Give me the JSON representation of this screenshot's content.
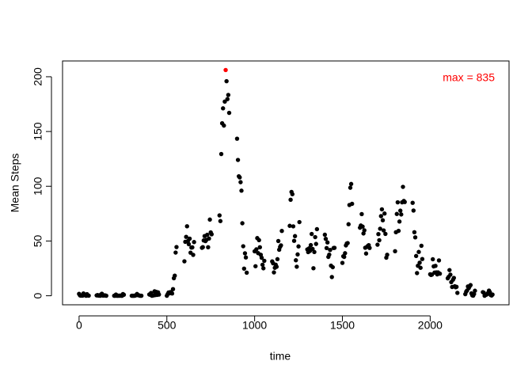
{
  "chart_data": {
    "type": "scatter",
    "x_label": "time",
    "y_label": "Mean Steps",
    "annotation": {
      "text": "max = 835",
      "color": "#ff0000"
    },
    "xlim": [
      -94.2,
      2449.2
    ],
    "ylim": [
      -8.25,
      214.42
    ],
    "xticks": [
      0,
      500,
      1000,
      1500,
      2000
    ],
    "yticks": [
      0,
      50,
      100,
      150,
      200
    ],
    "series": [
      {
        "color": "#000000",
        "x": [
          0,
          5,
          10,
          15,
          20,
          25,
          30,
          35,
          40,
          45,
          50,
          55,
          100,
          105,
          110,
          115,
          120,
          125,
          130,
          135,
          140,
          145,
          150,
          155,
          200,
          205,
          210,
          215,
          220,
          225,
          230,
          235,
          240,
          245,
          250,
          255,
          300,
          305,
          310,
          315,
          320,
          325,
          330,
          335,
          340,
          345,
          350,
          355,
          400,
          405,
          410,
          415,
          420,
          425,
          430,
          435,
          440,
          445,
          450,
          455,
          500,
          505,
          510,
          515,
          520,
          525,
          530,
          535,
          540,
          545,
          550,
          555,
          600,
          605,
          610,
          615,
          620,
          625,
          630,
          635,
          640,
          645,
          650,
          655,
          700,
          705,
          710,
          715,
          720,
          725,
          730,
          735,
          740,
          745,
          750,
          755,
          800,
          805,
          810,
          815,
          820,
          825,
          830,
          840,
          845,
          850,
          855,
          900,
          905,
          910,
          915,
          920,
          925,
          930,
          935,
          940,
          945,
          950,
          955,
          1000,
          1005,
          1010,
          1015,
          1020,
          1025,
          1030,
          1035,
          1040,
          1045,
          1050,
          1055,
          1100,
          1105,
          1110,
          1115,
          1120,
          1125,
          1130,
          1135,
          1140,
          1145,
          1150,
          1155,
          1200,
          1205,
          1210,
          1215,
          1220,
          1225,
          1230,
          1235,
          1240,
          1245,
          1250,
          1255,
          1300,
          1305,
          1310,
          1315,
          1320,
          1325,
          1330,
          1335,
          1340,
          1345,
          1350,
          1355,
          1400,
          1405,
          1410,
          1415,
          1420,
          1425,
          1430,
          1435,
          1440,
          1445,
          1450,
          1455,
          1500,
          1505,
          1510,
          1515,
          1520,
          1525,
          1530,
          1535,
          1540,
          1545,
          1550,
          1555,
          1600,
          1605,
          1610,
          1615,
          1620,
          1625,
          1630,
          1635,
          1640,
          1645,
          1650,
          1655,
          1700,
          1705,
          1710,
          1715,
          1720,
          1725,
          1730,
          1735,
          1740,
          1745,
          1750,
          1755,
          1800,
          1805,
          1810,
          1815,
          1820,
          1825,
          1830,
          1835,
          1840,
          1845,
          1850,
          1855,
          1900,
          1905,
          1910,
          1915,
          1920,
          1925,
          1930,
          1935,
          1940,
          1945,
          1950,
          1955,
          2000,
          2005,
          2010,
          2015,
          2020,
          2025,
          2030,
          2035,
          2040,
          2045,
          2050,
          2055,
          2100,
          2105,
          2110,
          2115,
          2120,
          2125,
          2130,
          2135,
          2140,
          2145,
          2150,
          2155,
          2200,
          2205,
          2210,
          2215,
          2220,
          2225,
          2230,
          2235,
          2240,
          2245,
          2250,
          2255,
          2300,
          2305,
          2310,
          2315,
          2320,
          2325,
          2330,
          2335,
          2340,
          2345,
          2350,
          2355
        ],
        "values": [
          1.72,
          0.34,
          0.13,
          0.15,
          0.08,
          2.09,
          0.53,
          0.87,
          0,
          1.47,
          0.3,
          0.13,
          0.32,
          0.68,
          0.15,
          0.34,
          0,
          1.11,
          1.83,
          0.17,
          0.17,
          0.38,
          0.26,
          0,
          0,
          0,
          1.13,
          0,
          0,
          0.13,
          0,
          0.23,
          0,
          0,
          1.55,
          0.94,
          0,
          0,
          0,
          0,
          0.21,
          0.62,
          1.62,
          0.58,
          0.49,
          0.08,
          0,
          0,
          1.19,
          0.94,
          2.57,
          0,
          0.34,
          0.36,
          4.11,
          0.66,
          3.49,
          0.83,
          3.11,
          1.11,
          0,
          1.57,
          3,
          2.25,
          3.32,
          2.96,
          2.09,
          6.06,
          16.02,
          18.34,
          39.45,
          44.49,
          31.49,
          49.26,
          53.77,
          63.45,
          49.96,
          47.08,
          52.15,
          39.34,
          44.02,
          44.17,
          37.36,
          49.04,
          43.81,
          44.38,
          50.51,
          54.51,
          49.92,
          50.98,
          55.68,
          44.32,
          52.26,
          69.55,
          57.85,
          56.15,
          73.38,
          68.21,
          129.43,
          157.53,
          171.15,
          155.4,
          177.3,
          195.92,
          179.57,
          183.4,
          167.02,
          143.45,
          124.04,
          109.11,
          108.11,
          103.72,
          95.96,
          66.21,
          45.23,
          24.79,
          38.75,
          34.98,
          21.06,
          40.57,
          26.98,
          42.42,
          52.66,
          38.92,
          50.79,
          44.28,
          37.42,
          34.7,
          28.34,
          25.09,
          31.94,
          31.36,
          29.68,
          21.32,
          25.55,
          28.38,
          26.47,
          33.43,
          49.98,
          42.04,
          44.6,
          46.04,
          59.19,
          63.87,
          87.7,
          94.85,
          92.77,
          63.4,
          50.17,
          54.47,
          32.42,
          26.53,
          37.74,
          45.06,
          67.28,
          42.34,
          39.89,
          43.26,
          40.98,
          46.25,
          56.43,
          42.75,
          25.13,
          39.96,
          53.55,
          47.32,
          60.81,
          55.75,
          51.96,
          43.58,
          48.7,
          35.47,
          37.55,
          41.85,
          27.51,
          17.11,
          26.08,
          43.62,
          43.77,
          30.02,
          36.08,
          35.49,
          38.85,
          45.96,
          47.75,
          48.13,
          65.32,
          82.91,
          98.66,
          102.11,
          83.96,
          62.13,
          64.13,
          74.55,
          63.17,
          56.91,
          59.77,
          43.87,
          38.57,
          44.66,
          45.45,
          46.21,
          43.68,
          46.62,
          56.3,
          50.72,
          61.23,
          72.72,
          78.94,
          68.94,
          59.66,
          75.09,
          56.51,
          34.77,
          37.45,
          40.68,
          58.02,
          74.7,
          85.32,
          59.26,
          67.77,
          77.7,
          74.25,
          85.34,
          99.45,
          86.58,
          85.6,
          84.87,
          77.83,
          58.04,
          53.36,
          36.32,
          20.72,
          27.4,
          40.02,
          30.21,
          25.55,
          45.66,
          33.53,
          19.62,
          19.02,
          19.34,
          33.34,
          26.81,
          21.17,
          27.3,
          21.34,
          19.55,
          21.32,
          32.3,
          20.15,
          15.94,
          17.23,
          23.45,
          19.25,
          12.45,
          8.02,
          14.66,
          16.3,
          8.68,
          7.79,
          8.13,
          2.62,
          1.45,
          3.68,
          4.81,
          8.51,
          7.08,
          8.7,
          9.75,
          2.21,
          0.32,
          0.11,
          1.6,
          4.6,
          3.3,
          2.85,
          0,
          0.83,
          0.96,
          1.58,
          2.6,
          4.7,
          3.3,
          0.64,
          0.23,
          1.08
        ]
      },
      {
        "color": "#ff0000",
        "x": [
          835
        ],
        "values": [
          206.17
        ]
      }
    ]
  }
}
